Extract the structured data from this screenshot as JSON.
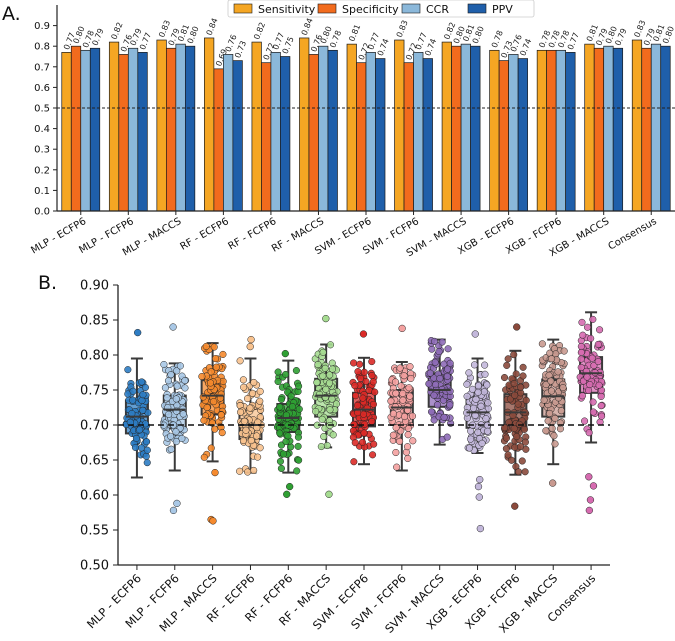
{
  "chart_data": [
    {
      "panel": "A.",
      "type": "bar",
      "categories": [
        "MLP - ECFP6",
        "MLP - FCFP6",
        "MLP - MACCS",
        "RF - ECFP6",
        "RF - FCFP6",
        "RF - MACCS",
        "SVM - ECFP6",
        "SVM - FCFP6",
        "SVM - MACCS",
        "XGB - ECFP6",
        "XGB - FCFP6",
        "XGB - MACCS",
        "Consensus"
      ],
      "series": [
        {
          "name": "Sensitivity",
          "color": "#F5A623",
          "values": [
            0.77,
            0.82,
            0.83,
            0.84,
            0.82,
            0.84,
            0.81,
            0.83,
            0.82,
            0.78,
            0.78,
            0.81,
            0.83
          ],
          "labels": [
            "0.77",
            "0.82",
            "0.83",
            "0.84",
            "0.82",
            "0.84",
            "0.81",
            "0.83",
            "0.82",
            "0.78",
            "0.78",
            "0.81",
            "0.83"
          ]
        },
        {
          "name": "Specificity",
          "color": "#F26B1D",
          "values": [
            0.8,
            0.76,
            0.79,
            0.69,
            0.72,
            0.76,
            0.72,
            0.72,
            0.8,
            0.73,
            0.78,
            0.79,
            0.79
          ],
          "labels": [
            "0.80",
            "0.76",
            "0.79",
            "0.69",
            "0.72",
            "0.76",
            "0.72",
            "0.72",
            "0.80",
            "0.73",
            "0.78",
            "0.79",
            "0.79"
          ]
        },
        {
          "name": "CCR",
          "color": "#8BB8DA",
          "values": [
            0.78,
            0.79,
            0.81,
            0.76,
            0.77,
            0.8,
            0.77,
            0.77,
            0.81,
            0.76,
            0.78,
            0.8,
            0.81
          ],
          "labels": [
            "0.78",
            "0.79",
            "0.81",
            "0.76",
            "0.77",
            "0.80",
            "0.77",
            "0.77",
            "0.81",
            "0.76",
            "0.78",
            "0.80",
            "0.81"
          ]
        },
        {
          "name": "PPV",
          "color": "#1F5FAA",
          "values": [
            0.79,
            0.77,
            0.8,
            0.73,
            0.75,
            0.78,
            0.74,
            0.74,
            0.8,
            0.74,
            0.77,
            0.79,
            0.8
          ],
          "labels": [
            "0.79",
            "0.77",
            "0.80",
            "0.73",
            "0.75",
            "0.78",
            "0.74",
            "0.74",
            "0.80",
            "0.74",
            "0.77",
            "0.79",
            "0.80"
          ]
        }
      ],
      "ylim": [
        0,
        1.0
      ],
      "yticks": [
        "0.0",
        "0.1",
        "0.2",
        "0.3",
        "0.4",
        "0.5",
        "0.6",
        "0.7",
        "0.8",
        "0.9"
      ],
      "reference_line": 0.5,
      "legend_position": "top-center"
    },
    {
      "panel": "B.",
      "type": "box",
      "categories": [
        "MLP - ECFP6",
        "MLP - FCFP6",
        "MLP - MACCS",
        "RF - ECFP6",
        "RF - FCFP6",
        "RF - MACCS",
        "SVM - ECFP6",
        "SVM - FCFP6",
        "SVM - MACCS",
        "XGB - ECFP6",
        "XGB - FCFP6",
        "XGB - MACCS",
        "Consensus"
      ],
      "colors": [
        "#2E7DC4",
        "#A9C8E6",
        "#F58A2E",
        "#F8C28E",
        "#2FA033",
        "#A6DC91",
        "#DA2A27",
        "#F4A1A0",
        "#8E6BB7",
        "#C3B8DB",
        "#8B4A3C",
        "#C99A90",
        "#D66BB0"
      ],
      "boxes": [
        {
          "q1": 0.688,
          "median": 0.712,
          "q3": 0.735,
          "whisker_low": 0.625,
          "whisker_high": 0.795,
          "outliers": [
            0.832
          ]
        },
        {
          "q1": 0.695,
          "median": 0.722,
          "q3": 0.742,
          "whisker_low": 0.635,
          "whisker_high": 0.788,
          "outliers": [
            0.84,
            0.588,
            0.578
          ]
        },
        {
          "q1": 0.715,
          "median": 0.742,
          "q3": 0.764,
          "whisker_low": 0.648,
          "whisker_high": 0.817,
          "outliers": [
            0.632,
            0.565,
            0.563
          ]
        },
        {
          "q1": 0.68,
          "median": 0.7,
          "q3": 0.724,
          "whisker_low": 0.632,
          "whisker_high": 0.795,
          "outliers": [
            0.822,
            0.812
          ]
        },
        {
          "q1": 0.69,
          "median": 0.71,
          "q3": 0.73,
          "whisker_low": 0.632,
          "whisker_high": 0.792,
          "outliers": [
            0.802,
            0.612,
            0.601
          ]
        },
        {
          "q1": 0.712,
          "median": 0.742,
          "q3": 0.766,
          "whisker_low": 0.668,
          "whisker_high": 0.815,
          "outliers": [
            0.852,
            0.601
          ]
        },
        {
          "q1": 0.698,
          "median": 0.722,
          "q3": 0.746,
          "whisker_low": 0.644,
          "whisker_high": 0.796,
          "outliers": [
            0.83
          ]
        },
        {
          "q1": 0.7,
          "median": 0.725,
          "q3": 0.75,
          "whisker_low": 0.635,
          "whisker_high": 0.79,
          "outliers": [
            0.838
          ]
        },
        {
          "q1": 0.726,
          "median": 0.75,
          "q3": 0.774,
          "whisker_low": 0.672,
          "whisker_high": 0.822,
          "outliers": []
        },
        {
          "q1": 0.696,
          "median": 0.718,
          "q3": 0.741,
          "whisker_low": 0.66,
          "whisker_high": 0.795,
          "outliers": [
            0.83,
            0.622,
            0.612,
            0.597,
            0.552
          ]
        },
        {
          "q1": 0.693,
          "median": 0.718,
          "q3": 0.744,
          "whisker_low": 0.629,
          "whisker_high": 0.806,
          "outliers": [
            0.84,
            0.584
          ]
        },
        {
          "q1": 0.712,
          "median": 0.741,
          "q3": 0.765,
          "whisker_low": 0.644,
          "whisker_high": 0.822,
          "outliers": [
            0.617
          ]
        },
        {
          "q1": 0.746,
          "median": 0.774,
          "q3": 0.797,
          "whisker_low": 0.675,
          "whisker_high": 0.861,
          "outliers": [
            0.626,
            0.613,
            0.593,
            0.578
          ]
        }
      ],
      "ylim": [
        0.5,
        0.9
      ],
      "yticks": [
        "0.50",
        "0.55",
        "0.60",
        "0.65",
        "0.70",
        "0.75",
        "0.80",
        "0.85",
        "0.90"
      ],
      "reference_line": 0.7
    }
  ]
}
